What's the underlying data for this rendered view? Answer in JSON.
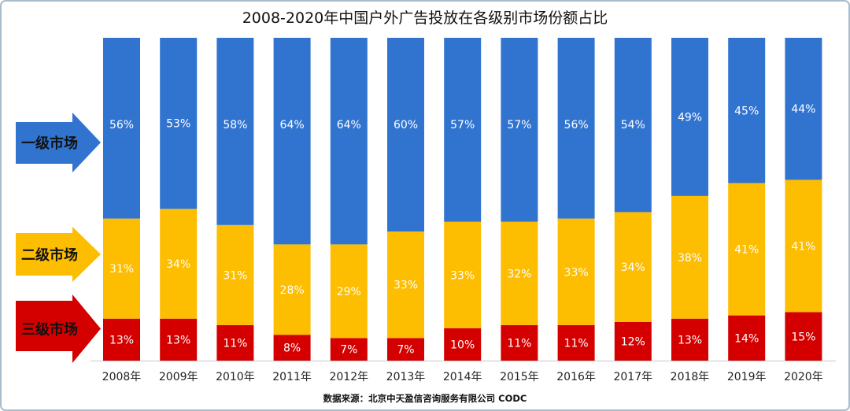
{
  "chart_data": {
    "type": "bar",
    "stacked": true,
    "title": "2008-2020年中国户外广告投放在各级别市场份额占比",
    "categories": [
      "2008年",
      "2009年",
      "2010年",
      "2011年",
      "2012年",
      "2013年",
      "2014年",
      "2015年",
      "2016年",
      "2017年",
      "2018年",
      "2019年",
      "2020年"
    ],
    "series": [
      {
        "name": "三级市场",
        "color": "#d40000",
        "values": [
          13,
          13,
          11,
          8,
          7,
          7,
          10,
          11,
          11,
          12,
          13,
          14,
          15
        ]
      },
      {
        "name": "二级市场",
        "color": "#fdbd00",
        "values": [
          31,
          34,
          31,
          28,
          29,
          33,
          33,
          32,
          33,
          34,
          38,
          41,
          41
        ]
      },
      {
        "name": "一级市场",
        "color": "#3174d0",
        "values": [
          56,
          53,
          58,
          64,
          64,
          60,
          57,
          57,
          56,
          54,
          49,
          45,
          44
        ]
      }
    ],
    "value_suffix": "%",
    "ylim": [
      0,
      100
    ],
    "grid": false,
    "legend": "left arrows",
    "source": "数据来源：北京中天盈信咨询服务有限公司 CODC"
  }
}
